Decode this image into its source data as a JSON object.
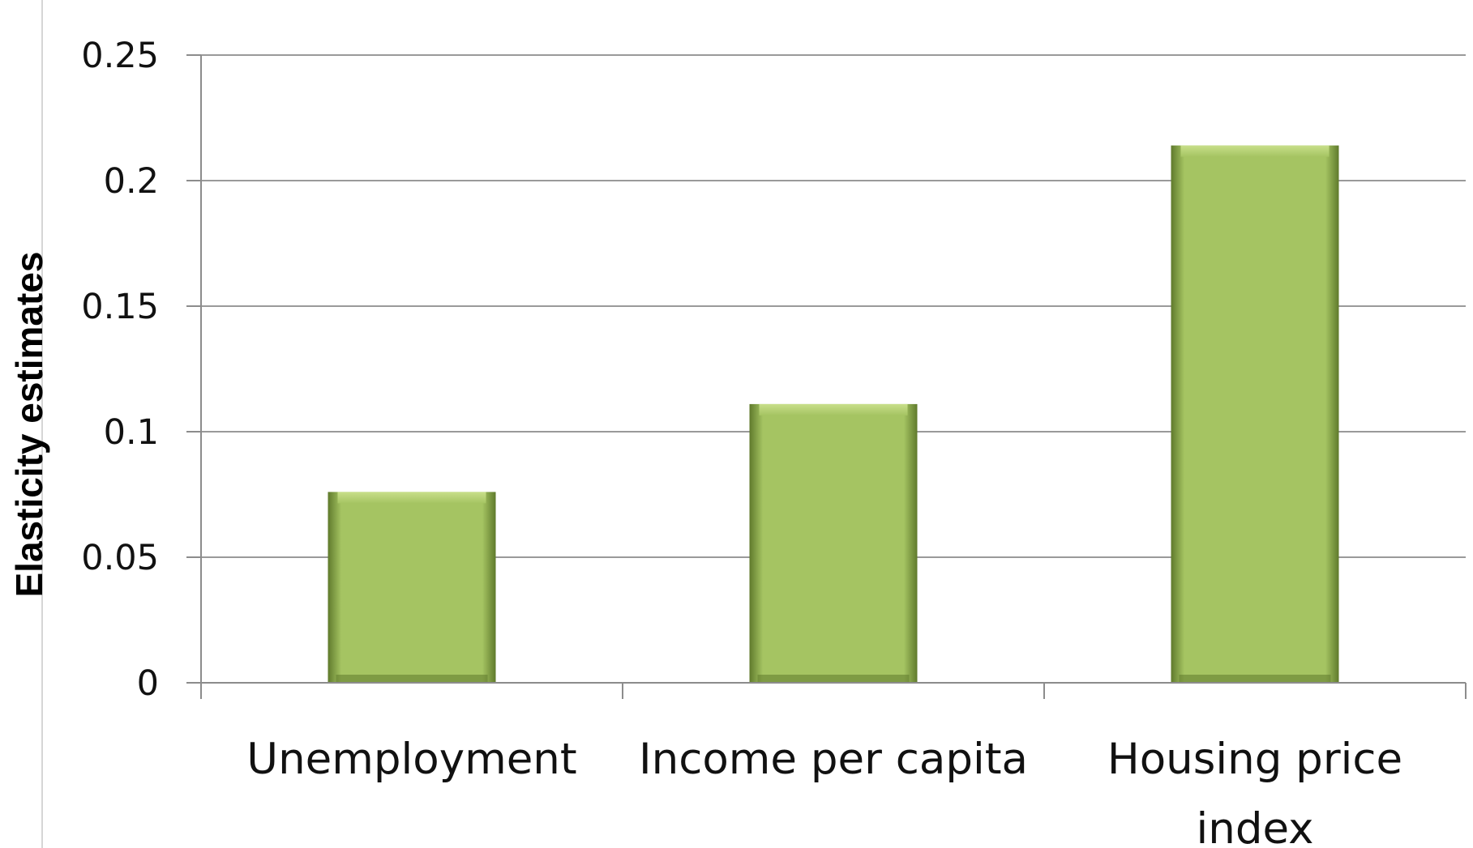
{
  "chart_data": {
    "type": "bar",
    "title": "",
    "xlabel": "",
    "ylabel": "Elasticity estimates",
    "categories": [
      [
        "Unemployment"
      ],
      [
        "Income per capita"
      ],
      [
        "Housing price",
        "index"
      ]
    ],
    "values": [
      0.076,
      0.111,
      0.214
    ],
    "ylim": [
      0,
      0.25
    ],
    "yticks": [
      0,
      0.05,
      0.1,
      0.15,
      0.2,
      0.25
    ],
    "ytick_labels": [
      "0",
      "0.05",
      "0.1",
      "0.15",
      "0.2",
      "0.25"
    ],
    "grid": true,
    "legend": "none",
    "colors": {
      "bar": "#a5c462",
      "bar_light": "#c8df8a",
      "bar_dark": "#5f7a2c",
      "grid": "#9a9a9a",
      "axis": "#8c8c8c"
    }
  }
}
